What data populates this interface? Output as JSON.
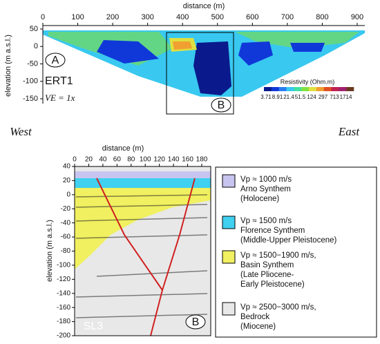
{
  "panel_a": {
    "x_axis_label": "distance (m)",
    "y_axis_label": "elevation (m a.s.l.)",
    "xticks": [
      0,
      100,
      200,
      300,
      400,
      500,
      600,
      700,
      800,
      900
    ],
    "yticks": [
      50,
      0,
      -50,
      -100,
      -150
    ],
    "label": "A",
    "profile": "ERT1",
    "ve": "VE = 1x",
    "box_label": "B",
    "colorbar": {
      "title": "Resistivity (Ohm.m)",
      "ticks": [
        "3.71",
        "8.91",
        "21.4",
        "51.5",
        "124",
        "297",
        "713",
        "1714"
      ],
      "colors": [
        "#0a1a8c",
        "#1038d8",
        "#2a7cf0",
        "#38c8f0",
        "#40e0a0",
        "#80e040",
        "#e0e040",
        "#f0a030",
        "#e05020",
        "#c02050",
        "#a02070",
        "#6a3a20"
      ]
    }
  },
  "directions": {
    "west": "West",
    "east": "East"
  },
  "panel_b": {
    "x_axis_label": "distance (m)",
    "y_axis_label": "elevation (m a.s.l.)",
    "xticks": [
      0,
      20,
      40,
      60,
      80,
      100,
      120,
      140,
      160,
      180
    ],
    "yticks": [
      40,
      20,
      0,
      -20,
      -40,
      -60,
      -80,
      -100,
      -120,
      -140,
      -160,
      -180,
      -200
    ],
    "label": "B",
    "profile": "SL3"
  },
  "legend": [
    {
      "color": "#c8c4f0",
      "lines": [
        "Vp ≈ 1000 m/s",
        "Arno Synthem",
        "(Holocene)"
      ]
    },
    {
      "color": "#40d0f0",
      "lines": [
        "Vp ≈ 1500 m/s",
        "Florence Synthem",
        "(Middle-Upper Pleistocene)"
      ]
    },
    {
      "color": "#f0f060",
      "lines": [
        "Vp ≈ 1500−1900 m/s,",
        "Basin Synthem",
        "(Late Pliocene-",
        "Early Pleistocene)"
      ]
    },
    {
      "color": "#e8e8e8",
      "lines": [
        "Vp ≈ 2500−3000 m/s,",
        "Bedrock",
        "(Miocene)"
      ]
    }
  ]
}
